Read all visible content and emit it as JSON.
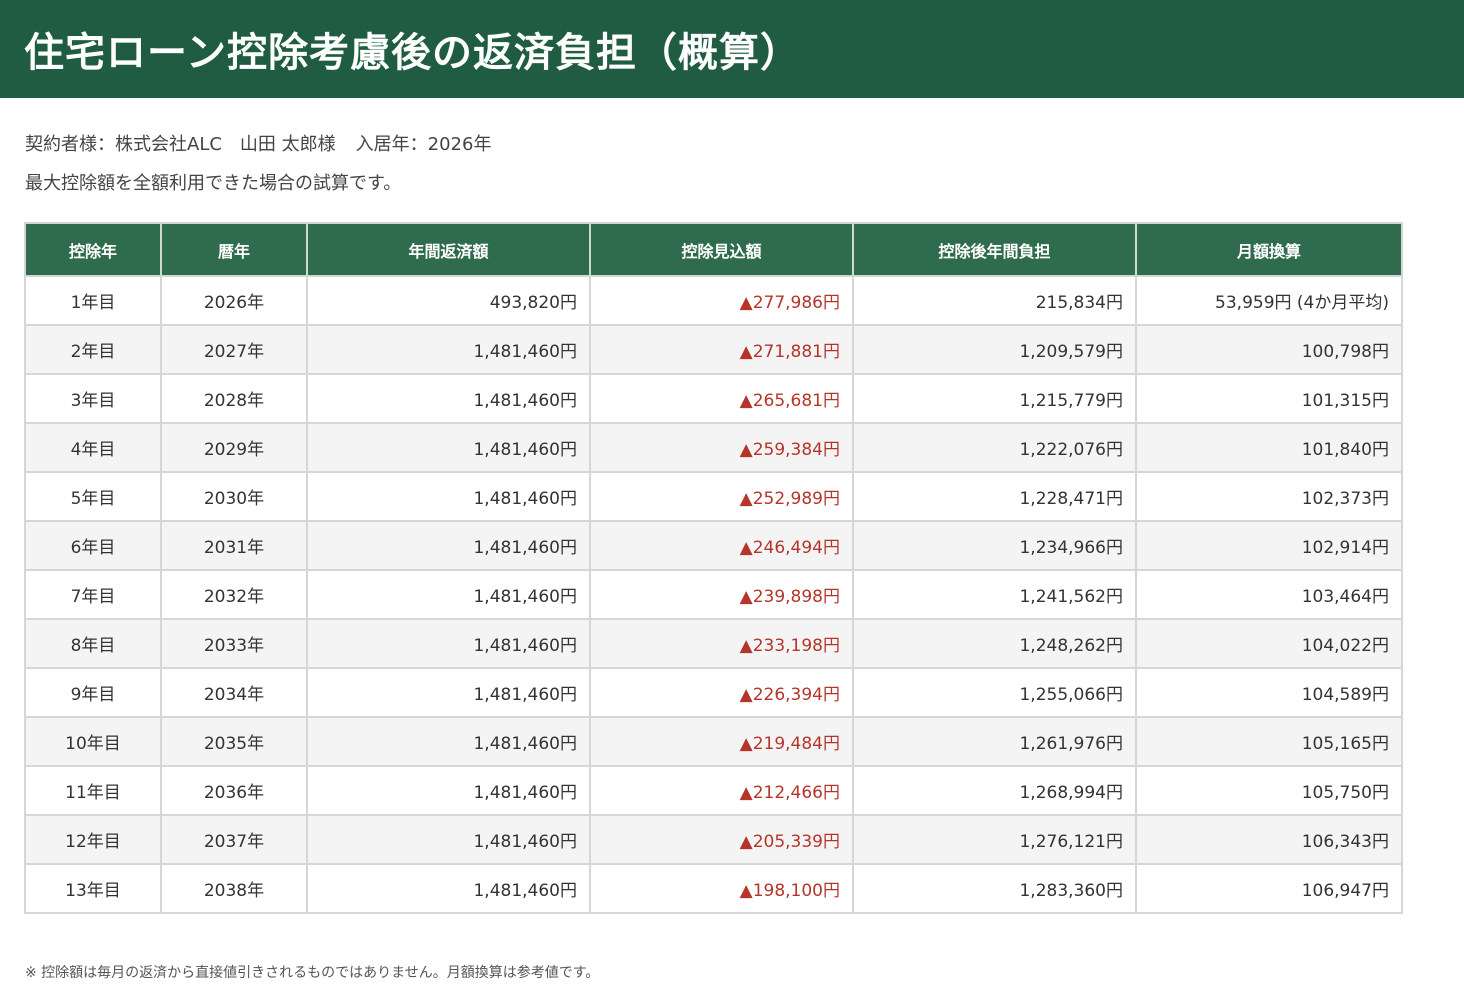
{
  "header": {
    "title": "住宅ローン控除考慮後の返済負担（概算）"
  },
  "info": {
    "contract": "契約者様：株式会社ALC　山田 太郎様",
    "move_in": "入居年：2026年",
    "description": "最大控除額を全額利用できた場合の試算です。"
  },
  "table": {
    "headers": [
      "控除年",
      "暦年",
      "年間返済額",
      "控除見込額",
      "控除後年間負担",
      "月額換算"
    ],
    "rows": [
      [
        "1年目",
        "2026年",
        "493,820円",
        "▲277,986円",
        "215,834円",
        "53,959円 (4か月平均)"
      ],
      [
        "2年目",
        "2027年",
        "1,481,460円",
        "▲271,881円",
        "1,209,579円",
        "100,798円"
      ],
      [
        "3年目",
        "2028年",
        "1,481,460円",
        "▲265,681円",
        "1,215,779円",
        "101,315円"
      ],
      [
        "4年目",
        "2029年",
        "1,481,460円",
        "▲259,384円",
        "1,222,076円",
        "101,840円"
      ],
      [
        "5年目",
        "2030年",
        "1,481,460円",
        "▲252,989円",
        "1,228,471円",
        "102,373円"
      ],
      [
        "6年目",
        "2031年",
        "1,481,460円",
        "▲246,494円",
        "1,234,966円",
        "102,914円"
      ],
      [
        "7年目",
        "2032年",
        "1,481,460円",
        "▲239,898円",
        "1,241,562円",
        "103,464円"
      ],
      [
        "8年目",
        "2033年",
        "1,481,460円",
        "▲233,198円",
        "1,248,262円",
        "104,022円"
      ],
      [
        "9年目",
        "2034年",
        "1,481,460円",
        "▲226,394円",
        "1,255,066円",
        "104,589円"
      ],
      [
        "10年目",
        "2035年",
        "1,481,460円",
        "▲219,484円",
        "1,261,976円",
        "105,165円"
      ],
      [
        "11年目",
        "2036年",
        "1,481,460円",
        "▲212,466円",
        "1,268,994円",
        "105,750円"
      ],
      [
        "12年目",
        "2037年",
        "1,481,460円",
        "▲205,339円",
        "1,276,121円",
        "106,343円"
      ],
      [
        "13年目",
        "2038年",
        "1,481,460円",
        "▲198,100円",
        "1,283,360円",
        "106,947円"
      ]
    ]
  },
  "note": "※ 控除額は毎月の返済から直接値引きされるものではありません。月額換算は参考値です。",
  "colors": {
    "header_bg": "#1f5c42",
    "table_header_bg": "#2f6b4d",
    "deduction_text": "#b5352b"
  }
}
